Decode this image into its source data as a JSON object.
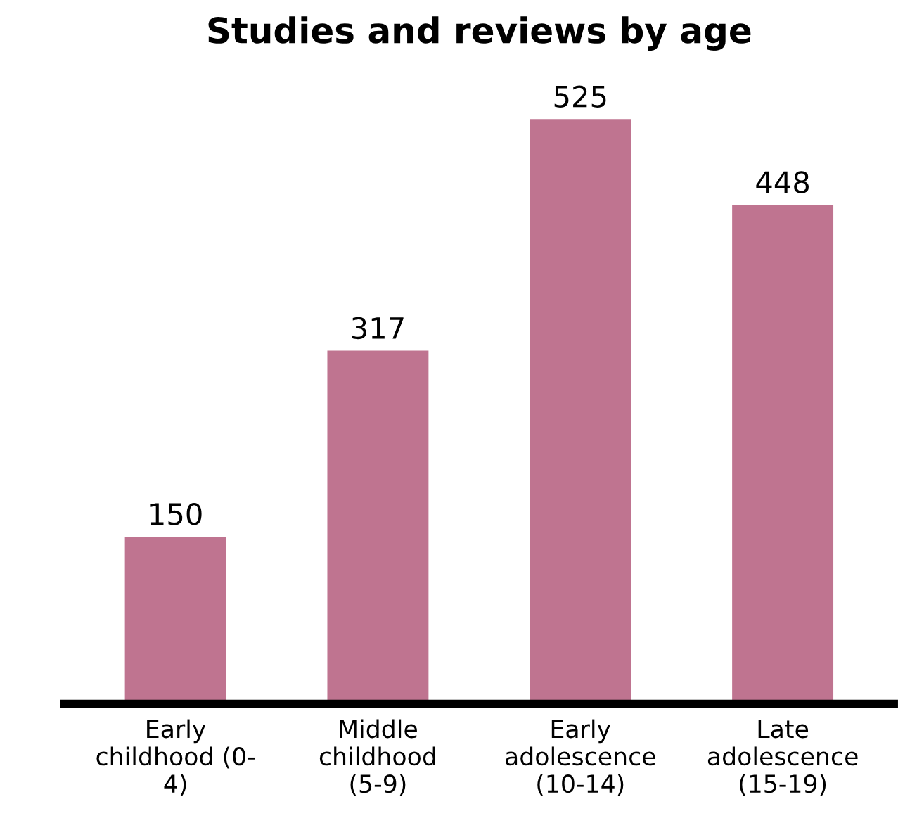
{
  "chart_data": {
    "type": "bar",
    "title": "Studies and reviews by age",
    "categories": [
      "Early\nchildhood (0-\n4)",
      "Middle\nchildhood\n(5-9)",
      "Early\nadolescence\n(10-14)",
      "Late\nadolescence\n(15-19)"
    ],
    "values": [
      150,
      317,
      525,
      448
    ],
    "color": "#bf7490",
    "data_labels": true,
    "grid": false,
    "legend": false
  }
}
